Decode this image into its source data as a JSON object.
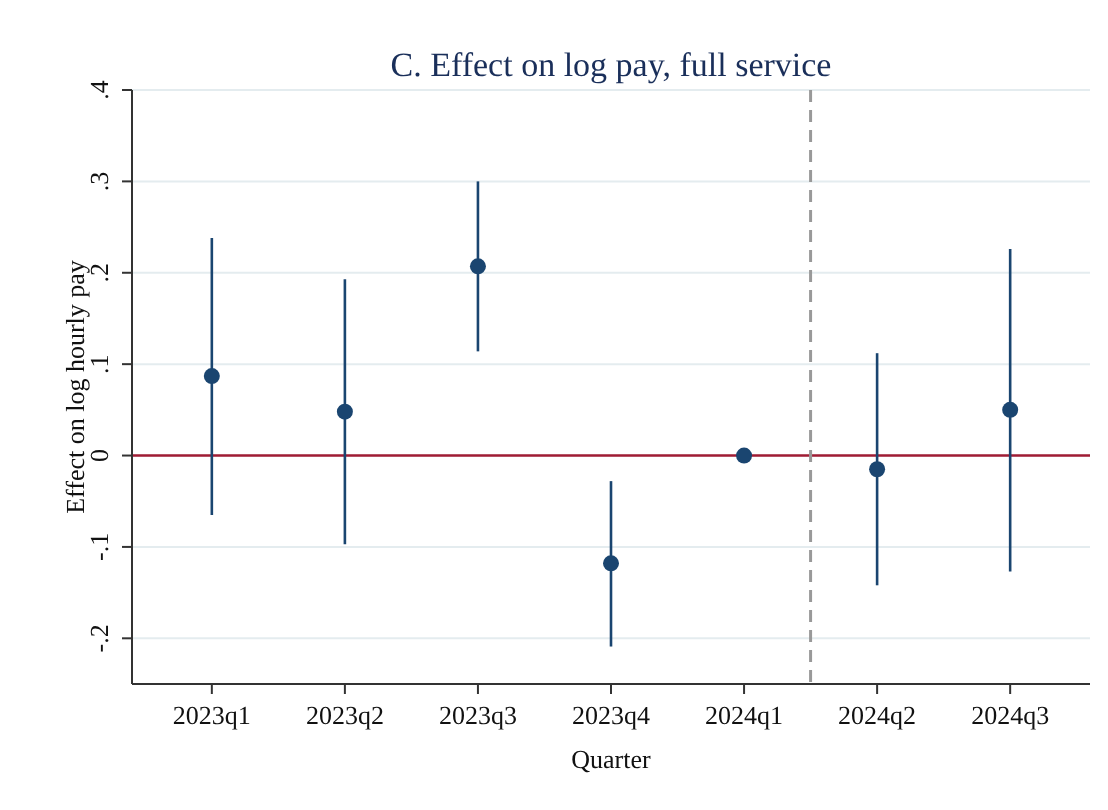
{
  "chart_data": {
    "type": "scatter",
    "title": "C. Effect on log pay, full service",
    "xlabel": "Quarter",
    "ylabel": "Effect on log hourly pay",
    "categories": [
      "2023q1",
      "2023q2",
      "2023q3",
      "2023q4",
      "2024q1",
      "2024q2",
      "2024q3"
    ],
    "series": [
      {
        "color": "#1a4570",
        "values": [
          0.087,
          0.048,
          0.207,
          -0.118,
          0,
          -0.015,
          0.05
        ],
        "errors": [
          [
            -0.065,
            0.238
          ],
          [
            -0.097,
            0.193
          ],
          [
            0.114,
            0.3
          ],
          [
            -0.209,
            -0.028
          ],
          null,
          [
            -0.142,
            0.112
          ],
          [
            -0.127,
            0.226
          ]
        ]
      }
    ],
    "ylim": [
      -0.25,
      0.4
    ],
    "yticks": [
      {
        "value": -0.2,
        "label": "-.2"
      },
      {
        "value": -0.1,
        "label": "-.1"
      },
      {
        "value": 0,
        "label": "0"
      },
      {
        "value": 0.1,
        "label": ".1"
      },
      {
        "value": 0.2,
        "label": ".2"
      },
      {
        "value": 0.3,
        "label": ".3"
      },
      {
        "value": 0.4,
        "label": ".4"
      }
    ],
    "grid": "y",
    "marker": "circle",
    "ref_lines": [
      {
        "axis": "y",
        "value": 0,
        "color": "#a01c34",
        "line_style": "solid"
      }
    ]
  }
}
